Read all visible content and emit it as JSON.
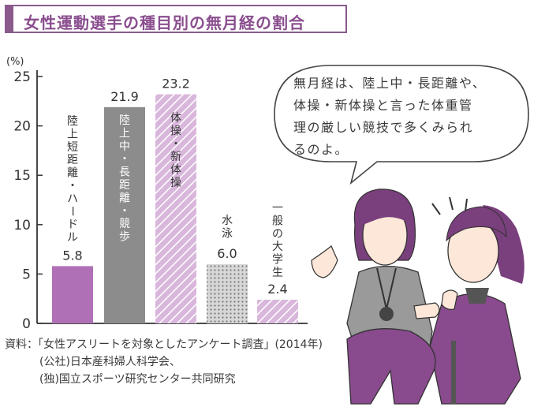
{
  "title": "女性運動選手の種目別の無月経の割合",
  "speech_bubble": {
    "lines": [
      "無月経は、陸上中・長距離や、",
      "体操・新体操と言った体重管",
      "理の厳しい競技で多くみられ",
      "るのよ。"
    ]
  },
  "source_lines": [
    "資料：「女性アスリートを対象としたアンケート調査」(2014年)",
    "(公社)日本産科婦人科学会、",
    "(独)国立スポーツ研究センター共同研究"
  ],
  "colors": {
    "accent": "#8a5a8d",
    "bar_purple": "#b070b6",
    "bar_gray": "#8c8c8c",
    "bar_hatch_light": "#d9b7dc",
    "bar_hatch_stripe": "#ffffff",
    "dot": "#7a7a7a",
    "dot_bg": "#d7d7d7"
  },
  "chart_data": {
    "type": "bar",
    "unit_label": "(%)",
    "ylim": [
      0,
      25
    ],
    "yticks": [
      "0",
      "5",
      "10",
      "15",
      "20",
      "25"
    ],
    "categories": [
      "陸上短距離・ハードル",
      "陸上中・長距離・競歩",
      "体操・新体操",
      "水泳",
      "一般の大学生"
    ],
    "values": [
      5.8,
      21.9,
      23.2,
      6.0,
      2.4
    ],
    "value_labels": [
      "5.8",
      "21.9",
      "23.2",
      "6.0",
      "2.4"
    ],
    "bar_styles": [
      "solid-purple",
      "solid-gray",
      "hatch-purple",
      "dots-gray",
      "hatch-purple"
    ]
  }
}
